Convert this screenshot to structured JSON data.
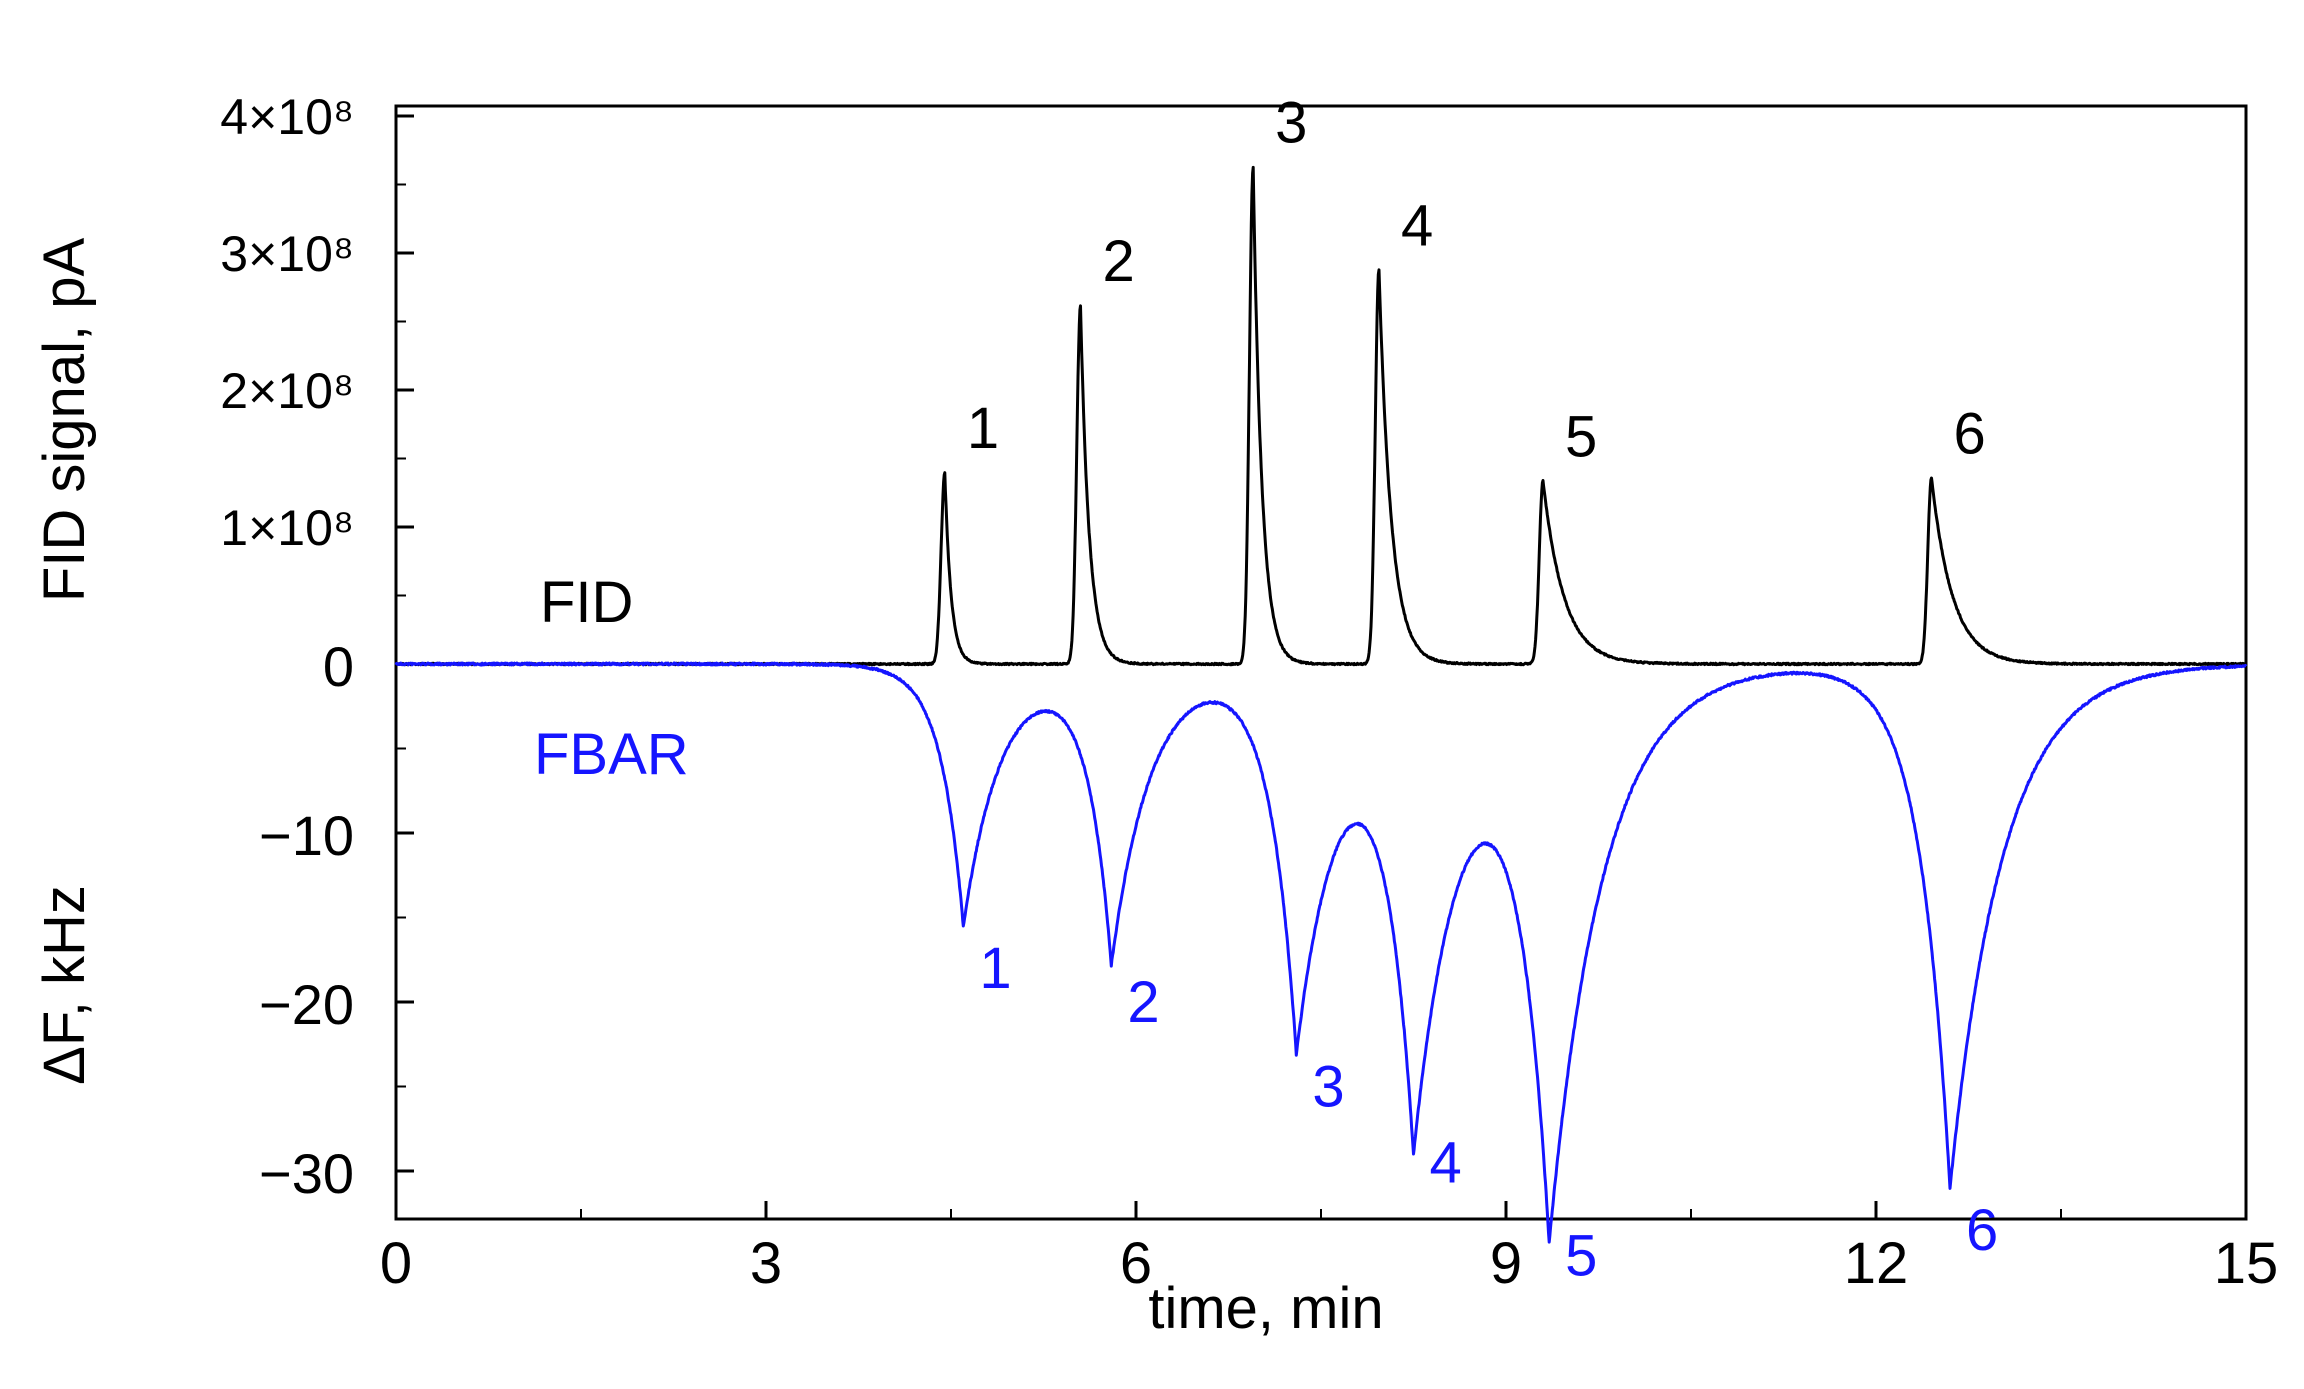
{
  "chart_data": {
    "type": "line",
    "xlabel": "time, min",
    "xlim": [
      0,
      15
    ],
    "x_ticks": [
      0,
      3,
      6,
      9,
      12,
      15
    ],
    "x_tick_labels": [
      "0",
      "3",
      "6",
      "9",
      "12",
      "15"
    ],
    "fid_axis": {
      "label": "FID signal, pA",
      "ylim": [
        0,
        400000000
      ],
      "ticks": [
        {
          "value": 100000000,
          "label": "1×10⁸"
        },
        {
          "value": 200000000,
          "label": "2×10⁸"
        },
        {
          "value": 300000000,
          "label": "3×10⁸"
        },
        {
          "value": 400000000,
          "label": "4×10⁸"
        }
      ]
    },
    "fbar_axis": {
      "label": "ΔF, kHz",
      "ylim": [
        -32.5,
        0
      ],
      "ticks": [
        {
          "value": 0,
          "label": "0"
        },
        {
          "value": -10,
          "label": "−10"
        },
        {
          "value": -20,
          "label": "−20"
        },
        {
          "value": -30,
          "label": "−30"
        }
      ]
    },
    "grid": false,
    "series": [
      {
        "name": "FID",
        "color": "#000000",
        "peaks": [
          {
            "label": "1",
            "t": 4.45,
            "height": 140000000,
            "width": 0.05
          },
          {
            "label": "2",
            "t": 5.55,
            "height": 262000000,
            "width": 0.07
          },
          {
            "label": "3",
            "t": 6.95,
            "height": 363000000,
            "width": 0.07
          },
          {
            "label": "4",
            "t": 7.97,
            "height": 288000000,
            "width": 0.1
          },
          {
            "label": "5",
            "t": 9.3,
            "height": 134000000,
            "width": 0.17
          },
          {
            "label": "6",
            "t": 12.45,
            "height": 136000000,
            "width": 0.17
          }
        ]
      },
      {
        "name": "FBAR",
        "color": "#1515ff",
        "peaks": [
          {
            "label": "1",
            "t": 4.6,
            "depth": -15.5
          },
          {
            "label": "2",
            "t": 5.8,
            "depth": -17.5
          },
          {
            "label": "3",
            "t": 7.3,
            "depth": -22.5
          },
          {
            "label": "4",
            "t": 8.25,
            "depth": -27.0
          },
          {
            "label": "5",
            "t": 9.35,
            "depth": -32.5
          },
          {
            "label": "6",
            "t": 12.6,
            "depth": -31.0
          }
        ]
      }
    ]
  }
}
